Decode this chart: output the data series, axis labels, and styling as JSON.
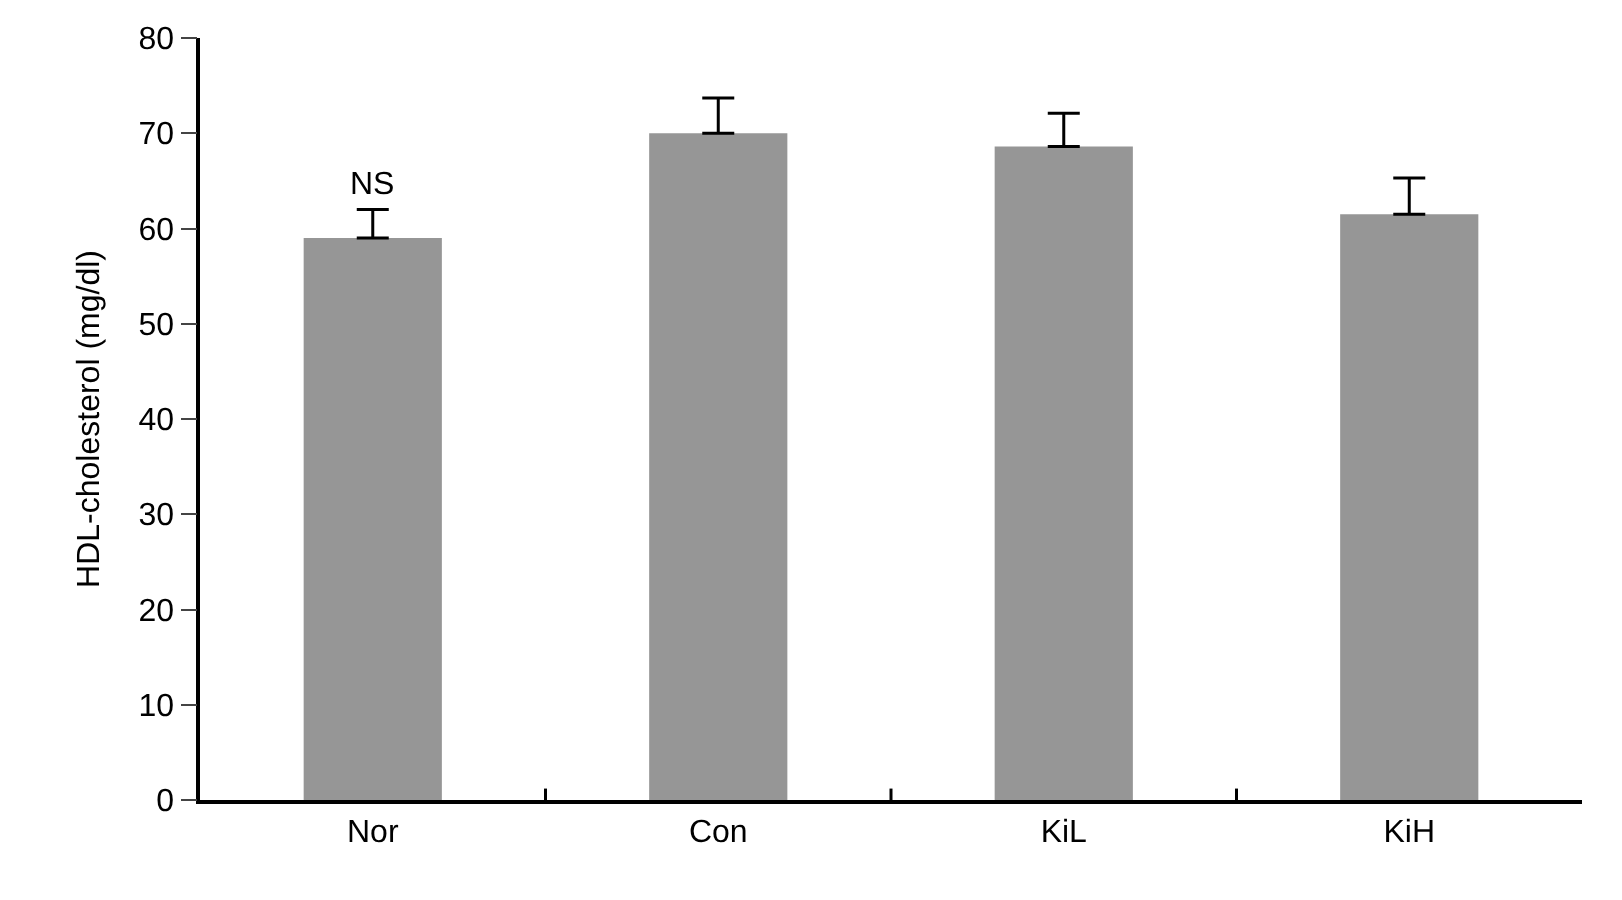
{
  "chart_data": {
    "type": "bar",
    "ylabel": "HDL-cholesterol (mg/dl)",
    "categories": [
      "Nor",
      "Con",
      "KiL",
      "KiH"
    ],
    "values": [
      59,
      70,
      68.6,
      61.5
    ],
    "errors": [
      [
        59,
        62
      ],
      [
        70,
        73.7
      ],
      [
        68.6,
        72.1
      ],
      [
        61.5,
        65.3
      ]
    ],
    "color": "#969696",
    "ylim": [
      0,
      80
    ],
    "yticks": [
      0,
      10,
      20,
      30,
      40,
      50,
      60,
      70,
      80
    ],
    "annotations": [
      "NS"
    ]
  }
}
